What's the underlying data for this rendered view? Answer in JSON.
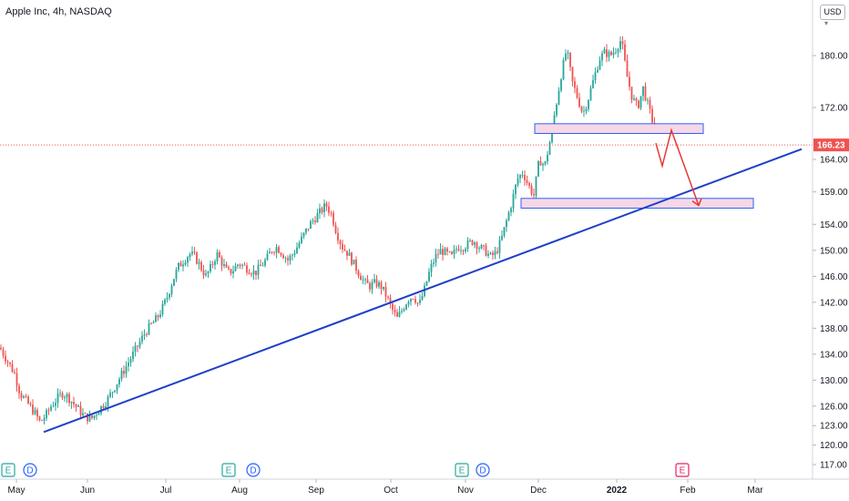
{
  "header": {
    "title": "Apple Inc, 4h, NASDAQ",
    "currency": "USD"
  },
  "colors": {
    "up": "#26a69a",
    "down": "#ef5350",
    "trendline": "#1e40c8",
    "zone_fill": "#f7d7e6",
    "zone_border": "#2962ff",
    "arrow": "#e53935",
    "price_line": "#ef5350",
    "badge": "#ef5350",
    "earnings": "#26a69a",
    "dividend": "#2962ff",
    "future_earnings": "#e91e63"
  },
  "chart_data": {
    "type": "candlestick",
    "title": "Apple Inc, 4h, NASDAQ",
    "ylim": [
      116,
      186
    ],
    "y_ticks": [
      117,
      120,
      123,
      126,
      130,
      134,
      138,
      142,
      146,
      150,
      154,
      159,
      164,
      172,
      180
    ],
    "x_ticks": [
      "May",
      "Jun",
      "Jul",
      "Aug",
      "Sep",
      "Oct",
      "Nov",
      "Dec",
      "2022",
      "Feb",
      "Mar"
    ],
    "last_price": 166.23,
    "price_path": [
      [
        0,
        135
      ],
      [
        8,
        133
      ],
      [
        16,
        131
      ],
      [
        22,
        128
      ],
      [
        30,
        126.5
      ],
      [
        38,
        125
      ],
      [
        44,
        123.5
      ],
      [
        50,
        124.5
      ],
      [
        56,
        126
      ],
      [
        62,
        127
      ],
      [
        68,
        128
      ],
      [
        74,
        127.5
      ],
      [
        80,
        126.5
      ],
      [
        86,
        125.5
      ],
      [
        92,
        124.5
      ],
      [
        100,
        124
      ],
      [
        106,
        125
      ],
      [
        112,
        126
      ],
      [
        118,
        127
      ],
      [
        124,
        128.5
      ],
      [
        130,
        130
      ],
      [
        136,
        131.5
      ],
      [
        142,
        133
      ],
      [
        148,
        134.5
      ],
      [
        154,
        136
      ],
      [
        160,
        137.5
      ],
      [
        166,
        138.5
      ],
      [
        172,
        139.5
      ],
      [
        178,
        141
      ],
      [
        184,
        143
      ],
      [
        190,
        145.5
      ],
      [
        196,
        147.5
      ],
      [
        202,
        148.5
      ],
      [
        208,
        149.5
      ],
      [
        214,
        149
      ],
      [
        220,
        147.5
      ],
      [
        226,
        146
      ],
      [
        232,
        147.5
      ],
      [
        238,
        149.5
      ],
      [
        244,
        148
      ],
      [
        250,
        146.5
      ],
      [
        256,
        147
      ],
      [
        262,
        148
      ],
      [
        268,
        147.5
      ],
      [
        274,
        147
      ],
      [
        280,
        146.5
      ],
      [
        286,
        147.5
      ],
      [
        292,
        148.5
      ],
      [
        298,
        150
      ],
      [
        304,
        150.5
      ],
      [
        310,
        149.5
      ],
      [
        316,
        148.5
      ],
      [
        322,
        149.5
      ],
      [
        328,
        151
      ],
      [
        334,
        152.5
      ],
      [
        340,
        154
      ],
      [
        346,
        155
      ],
      [
        352,
        156
      ],
      [
        358,
        157
      ],
      [
        364,
        155.5
      ],
      [
        370,
        152.5
      ],
      [
        376,
        150.5
      ],
      [
        382,
        149.5
      ],
      [
        388,
        148
      ],
      [
        394,
        146.5
      ],
      [
        400,
        145
      ],
      [
        406,
        144.5
      ],
      [
        412,
        145
      ],
      [
        418,
        144.5
      ],
      [
        424,
        143
      ],
      [
        430,
        141
      ],
      [
        436,
        139.5
      ],
      [
        442,
        141
      ],
      [
        448,
        142.5
      ],
      [
        454,
        143
      ],
      [
        460,
        141.5
      ],
      [
        466,
        144
      ],
      [
        472,
        147
      ],
      [
        478,
        149
      ],
      [
        484,
        150
      ],
      [
        490,
        149.5
      ],
      [
        496,
        149
      ],
      [
        502,
        150.5
      ],
      [
        508,
        150.5
      ],
      [
        514,
        151
      ],
      [
        520,
        151.5
      ],
      [
        526,
        150.5
      ],
      [
        532,
        150
      ],
      [
        538,
        149
      ],
      [
        544,
        149.5
      ],
      [
        550,
        151.5
      ],
      [
        556,
        154.5
      ],
      [
        562,
        157.5
      ],
      [
        568,
        161
      ],
      [
        574,
        162
      ],
      [
        580,
        160
      ],
      [
        586,
        158.5
      ],
      [
        592,
        164
      ],
      [
        598,
        163
      ],
      [
        604,
        167
      ],
      [
        610,
        172
      ],
      [
        616,
        177
      ],
      [
        622,
        181
      ],
      [
        628,
        176
      ],
      [
        634,
        173.5
      ],
      [
        640,
        171
      ],
      [
        646,
        173.5
      ],
      [
        652,
        176.5
      ],
      [
        658,
        179.5
      ],
      [
        664,
        180.5
      ],
      [
        670,
        180
      ],
      [
        676,
        181
      ],
      [
        682,
        182.5
      ],
      [
        688,
        177
      ],
      [
        694,
        173.5
      ],
      [
        700,
        172
      ],
      [
        706,
        175
      ],
      [
        712,
        172
      ],
      [
        718,
        169
      ],
      [
        724,
        166.2
      ]
    ],
    "lines": [
      {
        "name": "trendline",
        "from": [
          "mid-May",
          122.0
        ],
        "to": [
          "mid-Mar",
          165.6
        ]
      }
    ],
    "zones": [
      {
        "name": "resistance-zone",
        "low": 168.0,
        "high": 169.5
      },
      {
        "name": "support-zone",
        "low": 156.5,
        "high": 158.0
      }
    ],
    "projection": [
      [
        720,
        166.5
      ],
      [
        727,
        163.0
      ],
      [
        737,
        168.5
      ],
      [
        767,
        156.9
      ]
    ],
    "event_markers": [
      {
        "label": "E",
        "kind": "earnings",
        "date": "early May"
      },
      {
        "label": "D",
        "kind": "dividend",
        "date": "early May"
      },
      {
        "label": "E",
        "kind": "earnings",
        "date": "late Jul"
      },
      {
        "label": "D",
        "kind": "dividend",
        "date": "early Aug"
      },
      {
        "label": "E",
        "kind": "earnings",
        "date": "late Oct"
      },
      {
        "label": "D",
        "kind": "dividend",
        "date": "early Nov"
      },
      {
        "label": "E",
        "kind": "future_earnings",
        "date": "late Jan"
      }
    ]
  }
}
